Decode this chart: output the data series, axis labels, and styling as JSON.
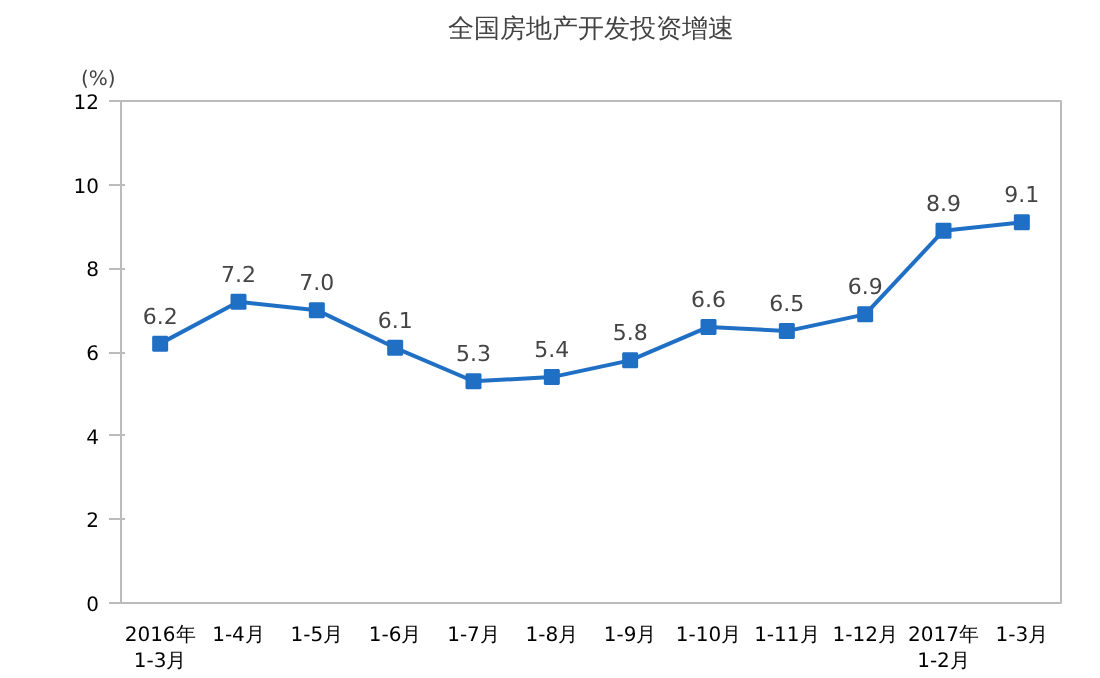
{
  "chart_data": {
    "type": "line",
    "title": "全国房地产开发投资增速",
    "ylabel": "(%)",
    "categories": [
      "2016年\n1-3月",
      "1-4月",
      "1-5月",
      "1-6月",
      "1-7月",
      "1-8月",
      "1-9月",
      "1-10月",
      "1-11月",
      "1-12月",
      "2017年\n1-2月",
      "1-3月"
    ],
    "series": [
      {
        "color": "#1f6fc5",
        "values": [
          6.2,
          7.2,
          7.0,
          6.1,
          5.3,
          5.4,
          5.8,
          6.6,
          6.5,
          6.9,
          8.9,
          9.1
        ]
      }
    ],
    "value_labels": [
      "6.2",
      "7.2",
      "7.0",
      "6.1",
      "5.3",
      "5.4",
      "5.8",
      "6.6",
      "6.5",
      "6.9",
      "8.9",
      "9.1"
    ],
    "ylim": [
      0,
      12
    ],
    "yticks": [
      0,
      2,
      4,
      6,
      8,
      10,
      12
    ],
    "grid": false,
    "marker": "square",
    "line_style": "solid"
  }
}
